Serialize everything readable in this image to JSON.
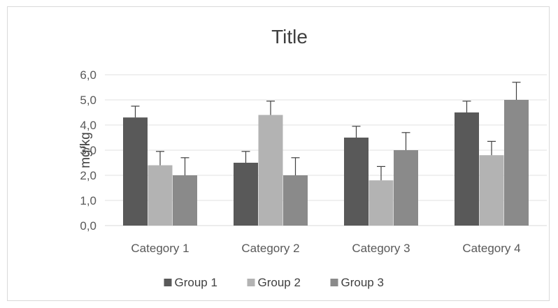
{
  "chart_data": {
    "type": "bar",
    "title": "Title",
    "xlabel": "",
    "ylabel": "mg/kg",
    "ylim": [
      0,
      6
    ],
    "ytick_step": 1,
    "ytick_labels": [
      "0,0",
      "1,0",
      "2,0",
      "3,0",
      "4,0",
      "5,0",
      "6,0"
    ],
    "categories": [
      "Category 1",
      "Category 2",
      "Category 3",
      "Category 4"
    ],
    "series": [
      {
        "name": "Group 1",
        "color": "#595959",
        "values": [
          4.3,
          2.5,
          3.5,
          4.5
        ],
        "errors": [
          0.45,
          0.45,
          0.45,
          0.45
        ]
      },
      {
        "name": "Group 2",
        "color": "#b3b3b3",
        "values": [
          2.4,
          4.4,
          1.8,
          2.8
        ],
        "errors": [
          0.55,
          0.55,
          0.55,
          0.55
        ]
      },
      {
        "name": "Group 3",
        "color": "#8a8a8a",
        "values": [
          2.0,
          2.0,
          3.0,
          5.0
        ],
        "errors": [
          0.7,
          0.7,
          0.7,
          0.7
        ]
      }
    ],
    "grid": true,
    "legend_position": "bottom"
  }
}
